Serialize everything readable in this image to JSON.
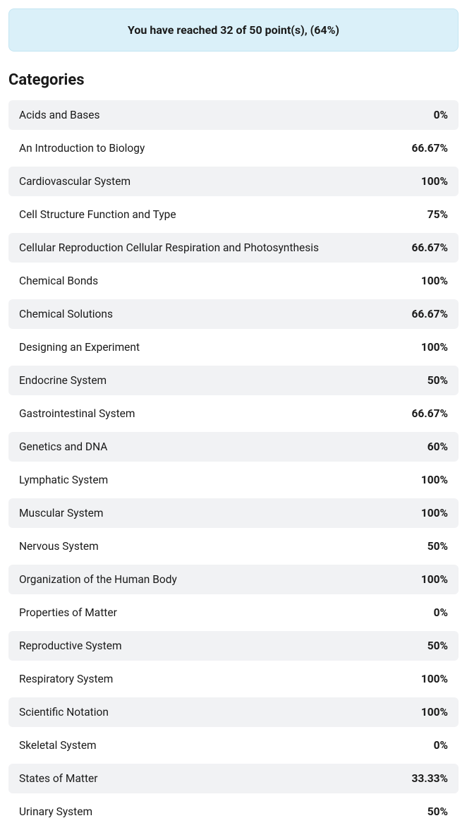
{
  "banner": {
    "text": "You have reached 32 of 50 point(s), (64%)"
  },
  "heading": "Categories",
  "colors": {
    "banner_bg": "#daf0f9",
    "banner_border": "#c4e5f2",
    "row_shaded": "#f1f2f4",
    "row_plain": "#ffffff",
    "text": "#1a1a1a"
  },
  "categories": [
    {
      "label": "Acids and Bases",
      "value": "0%"
    },
    {
      "label": "An Introduction to Biology",
      "value": "66.67%"
    },
    {
      "label": "Cardiovascular System",
      "value": "100%"
    },
    {
      "label": "Cell Structure Function and Type",
      "value": "75%"
    },
    {
      "label": "Cellular Reproduction Cellular Respiration and Photosynthesis",
      "value": "66.67%"
    },
    {
      "label": "Chemical Bonds",
      "value": "100%"
    },
    {
      "label": "Chemical Solutions",
      "value": "66.67%"
    },
    {
      "label": "Designing an Experiment",
      "value": "100%"
    },
    {
      "label": "Endocrine System",
      "value": "50%"
    },
    {
      "label": "Gastrointestinal System",
      "value": "66.67%"
    },
    {
      "label": "Genetics and DNA",
      "value": "60%"
    },
    {
      "label": "Lymphatic System",
      "value": "100%"
    },
    {
      "label": "Muscular System",
      "value": "100%"
    },
    {
      "label": "Nervous System",
      "value": "50%"
    },
    {
      "label": "Organization of the Human Body",
      "value": "100%"
    },
    {
      "label": "Properties of Matter",
      "value": "0%"
    },
    {
      "label": "Reproductive System",
      "value": "50%"
    },
    {
      "label": "Respiratory System",
      "value": "100%"
    },
    {
      "label": "Scientific Notation",
      "value": "100%"
    },
    {
      "label": "Skeletal System",
      "value": "0%"
    },
    {
      "label": "States of Matter",
      "value": "33.33%"
    },
    {
      "label": "Urinary System",
      "value": "50%"
    }
  ]
}
